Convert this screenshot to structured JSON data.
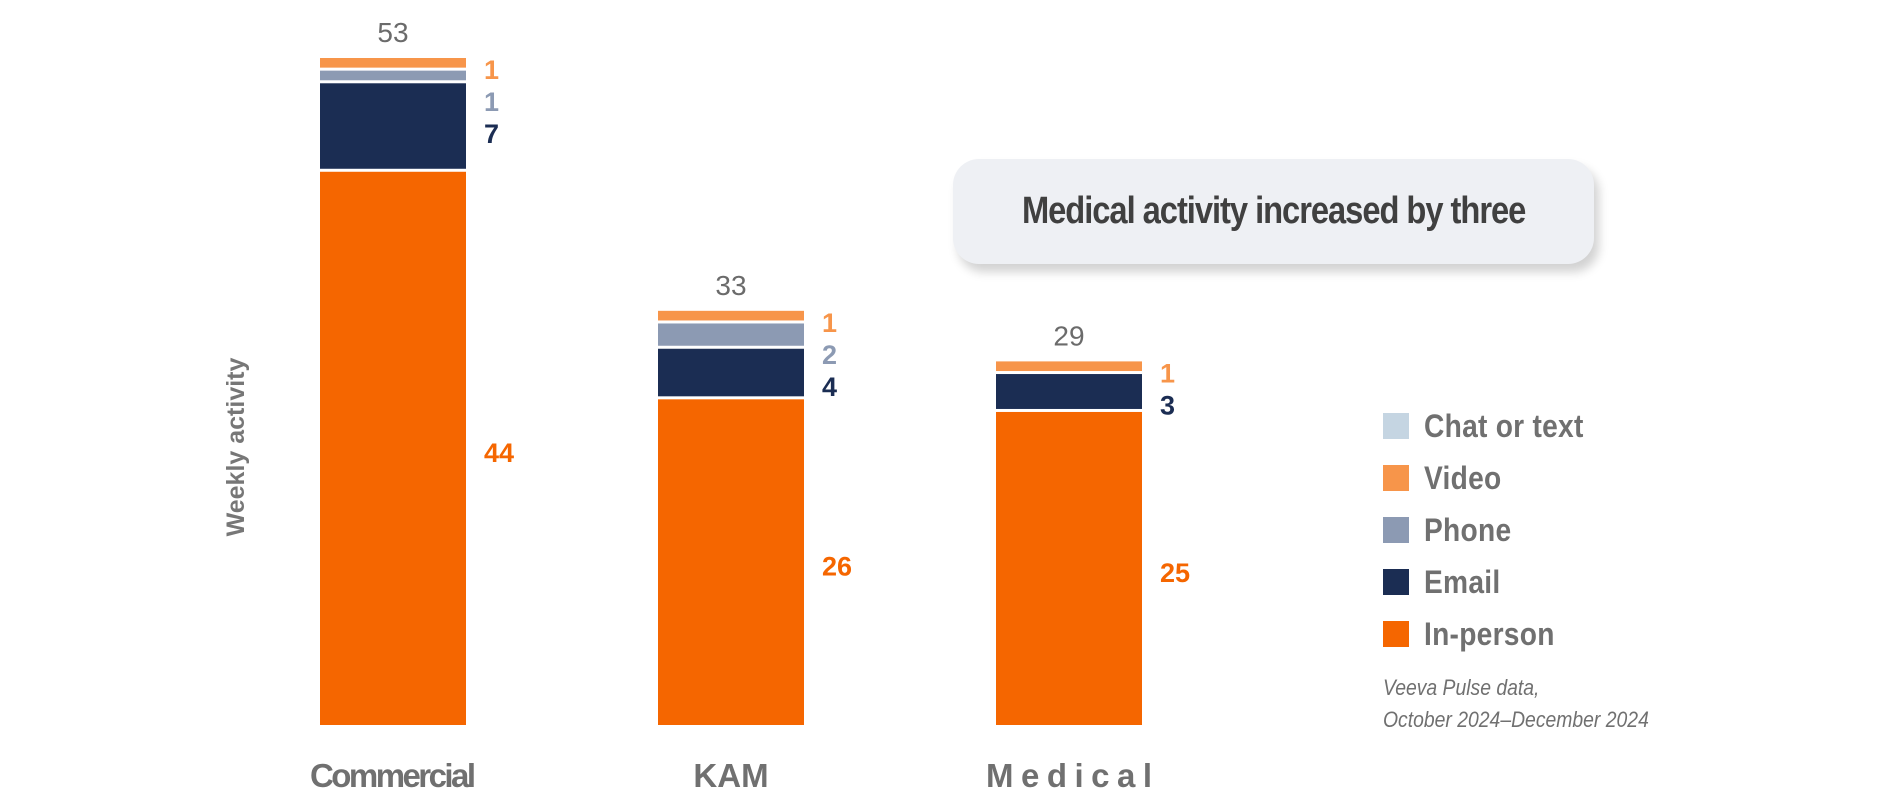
{
  "chart_data": {
    "type": "bar",
    "stacked": true,
    "title": "",
    "xlabel": "",
    "ylabel": "Weekly activity",
    "categories": [
      "Commercial",
      "KAM",
      "Medical"
    ],
    "totals": [
      53,
      33,
      29
    ],
    "series": [
      {
        "name": "In-person",
        "color": "#f56600",
        "values": [
          44,
          26,
          25
        ],
        "labels": [
          "44",
          "26",
          "25"
        ]
      },
      {
        "name": "Email",
        "color": "#1b2d53",
        "values": [
          7,
          4,
          3
        ],
        "labels": [
          "7",
          "4",
          "3"
        ]
      },
      {
        "name": "Phone",
        "color": "#8c9ab3",
        "values": [
          1,
          2,
          0
        ],
        "labels": [
          "1",
          "2",
          ""
        ]
      },
      {
        "name": "Video",
        "color": "#f7954a",
        "values": [
          1,
          1,
          1
        ],
        "labels": [
          "1",
          "1",
          "1"
        ]
      },
      {
        "name": "Chat or text",
        "color": "#c5d5e2",
        "values": [
          0,
          0,
          0
        ],
        "labels": [
          "",
          "",
          ""
        ]
      }
    ],
    "ylim": [
      0,
      53
    ],
    "grid": false,
    "legend_position": "right",
    "annotation": "Medical activity increased by three",
    "source": [
      "Veeva Pulse data,",
      "October 2024–December 2024"
    ]
  },
  "legend": [
    {
      "name": "Chat or text",
      "color": "#c5d5e2"
    },
    {
      "name": "Video",
      "color": "#f7954a"
    },
    {
      "name": "Phone",
      "color": "#8c9ab3"
    },
    {
      "name": "Email",
      "color": "#1b2d53"
    },
    {
      "name": "In-person",
      "color": "#f56600"
    }
  ],
  "colors": {
    "total_label": "#6b6b6b",
    "category_label": "#707070",
    "axis_label": "#777777"
  }
}
